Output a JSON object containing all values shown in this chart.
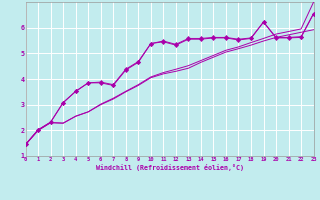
{
  "xlabel": "Windchill (Refroidissement éolien,°C)",
  "bg_color": "#c2ecee",
  "grid_color": "#ffffff",
  "line_color": "#aa00aa",
  "x_min": 0,
  "x_max": 23,
  "y_min": 1,
  "y_max": 7,
  "line1_x": [
    0,
    1,
    2,
    3,
    4,
    5,
    6,
    7,
    8,
    9,
    10,
    11,
    12,
    13,
    14,
    15,
    16,
    17,
    18,
    19,
    20,
    21,
    22,
    23
  ],
  "line1_y": [
    1.45,
    2.0,
    2.3,
    2.28,
    2.55,
    2.72,
    3.0,
    3.22,
    3.5,
    3.75,
    4.05,
    4.2,
    4.3,
    4.42,
    4.65,
    4.85,
    5.05,
    5.18,
    5.32,
    5.48,
    5.62,
    5.72,
    5.82,
    5.92
  ],
  "line2_x": [
    0,
    1,
    2,
    3,
    4,
    5,
    6,
    7,
    8,
    9,
    10,
    11,
    12,
    13,
    14,
    15,
    16,
    17,
    18,
    19,
    20,
    21,
    22,
    23
  ],
  "line2_y": [
    1.45,
    2.0,
    2.3,
    2.28,
    2.55,
    2.72,
    3.02,
    3.25,
    3.52,
    3.78,
    4.08,
    4.25,
    4.38,
    4.52,
    4.72,
    4.92,
    5.12,
    5.25,
    5.42,
    5.58,
    5.75,
    5.85,
    5.95,
    7.0
  ],
  "line3_x": [
    0,
    1,
    2,
    3,
    4,
    5,
    6,
    7,
    8,
    9,
    10,
    11,
    12,
    13,
    14,
    15,
    16,
    17,
    18,
    19,
    20,
    21,
    22,
    23
  ],
  "line3_y": [
    1.45,
    2.02,
    2.32,
    3.08,
    3.52,
    3.85,
    3.85,
    3.75,
    4.35,
    4.65,
    5.38,
    5.45,
    5.32,
    5.55,
    5.55,
    5.6,
    5.6,
    5.52,
    5.58,
    6.22,
    5.6,
    5.6,
    5.62,
    6.55
  ],
  "line4_x": [
    0,
    1,
    2,
    3,
    4,
    5,
    6,
    7,
    8,
    9,
    10,
    11,
    12,
    13,
    14,
    15,
    16,
    17,
    18,
    19,
    20,
    21,
    22,
    23
  ],
  "line4_y": [
    1.45,
    2.02,
    2.32,
    3.08,
    3.52,
    3.85,
    3.88,
    3.78,
    4.38,
    4.68,
    5.38,
    5.48,
    5.35,
    5.58,
    5.58,
    5.62,
    5.62,
    5.55,
    5.6,
    6.22,
    5.62,
    5.62,
    5.65,
    6.55
  ],
  "y_ticks": [
    1,
    2,
    3,
    4,
    5,
    6
  ],
  "x_ticks": [
    0,
    1,
    2,
    3,
    4,
    5,
    6,
    7,
    8,
    9,
    10,
    11,
    12,
    13,
    14,
    15,
    16,
    17,
    18,
    19,
    20,
    21,
    22,
    23
  ]
}
